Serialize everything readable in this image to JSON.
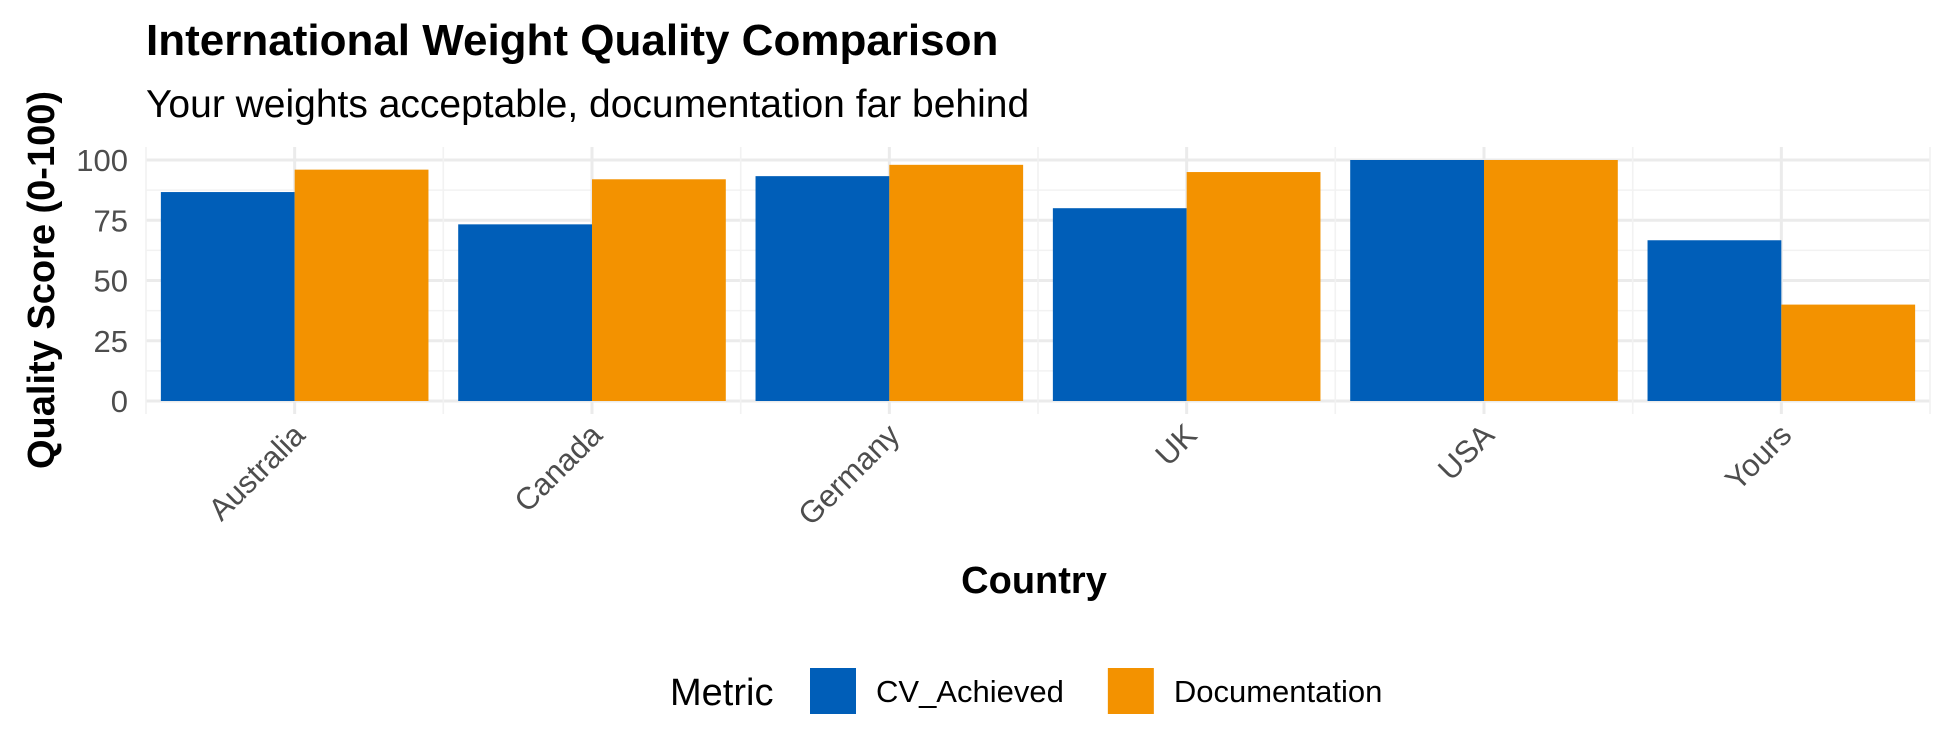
{
  "chart_data": {
    "type": "bar",
    "title": "International Weight Quality Comparison",
    "subtitle": "Your weights acceptable, documentation far behind",
    "xlabel": "Country",
    "ylabel": "Quality Score (0-100)",
    "categories": [
      "Australia",
      "Canada",
      "Germany",
      "UK",
      "USA",
      "Yours"
    ],
    "series": [
      {
        "name": "CV_Achieved",
        "color": "#005EB8",
        "values": [
          86.7,
          73.3,
          93.3,
          80,
          100,
          66.7
        ]
      },
      {
        "name": "Documentation",
        "color": "#F39200",
        "values": [
          96,
          92,
          98,
          95,
          100,
          40
        ]
      }
    ],
    "ylim": [
      0,
      100
    ],
    "yticks": [
      0,
      25,
      50,
      75,
      100
    ],
    "grid": true,
    "legend": {
      "title": "Metric",
      "position": "bottom"
    }
  }
}
